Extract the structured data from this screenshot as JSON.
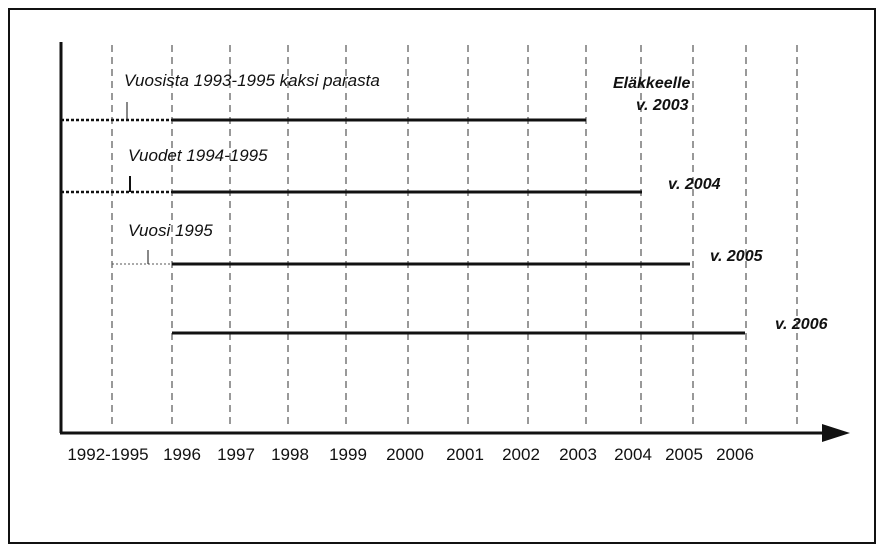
{
  "heading": "Eläkkeelle",
  "axis_labels": [
    "1992-1995",
    "1996",
    "1997",
    "1998",
    "1999",
    "2000",
    "2001",
    "2002",
    "2003",
    "2004",
    "2005",
    "2006"
  ],
  "rows": [
    {
      "label": "Vuosista 1993-1995 kaksi parasta",
      "end_label": "v. 2003"
    },
    {
      "label": "Vuodet 1994-1995",
      "end_label": "v. 2004"
    },
    {
      "label": "Vuosi 1995",
      "end_label": "v. 2005"
    },
    {
      "end_label": "v. 2006"
    }
  ]
}
